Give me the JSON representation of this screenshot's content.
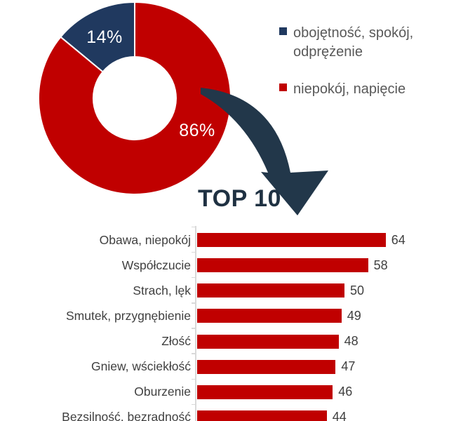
{
  "page": {
    "background": "#ffffff"
  },
  "donut": {
    "data_labels": {
      "blue": "14%",
      "red": "86%"
    },
    "label_color": "#ffffff"
  },
  "legend": {
    "items": [
      {
        "label": "obojętność, spokój, odprężenie",
        "color": "#20395f"
      },
      {
        "label": "niepokój, napięcie",
        "color": "#c00000"
      }
    ]
  },
  "top10": {
    "title": "TOP 10",
    "color": "#1f3142"
  },
  "arrow": {
    "icon": "curved-down-arrow",
    "color": "#22374a"
  },
  "chart_data": [
    {
      "type": "pie",
      "subtype": "donut",
      "categories": [
        "obojętność, spokój, odprężenie",
        "niepokój, napięcie"
      ],
      "values": [
        14,
        86
      ],
      "unit": "%",
      "colors": [
        "#20395f",
        "#c00000"
      ],
      "data_labels": [
        "14%",
        "86%"
      ],
      "legend_position": "right",
      "hole_ratio": 0.43
    },
    {
      "type": "bar",
      "orientation": "horizontal",
      "title": "TOP 10",
      "categories": [
        "Obawa, niepokój",
        "Współczucie",
        "Strach, lęk",
        "Smutek, przygnębienie",
        "Złość",
        "Gniew, wściekłość",
        "Oburzenie",
        "Bezsilność, bezradność"
      ],
      "values": [
        64,
        58,
        50,
        49,
        48,
        47,
        46,
        44
      ],
      "bar_color": "#c00000",
      "data_labels": true,
      "xlim": [
        0,
        70
      ],
      "grid": false,
      "note": "list truncated at bottom edge of image"
    }
  ]
}
